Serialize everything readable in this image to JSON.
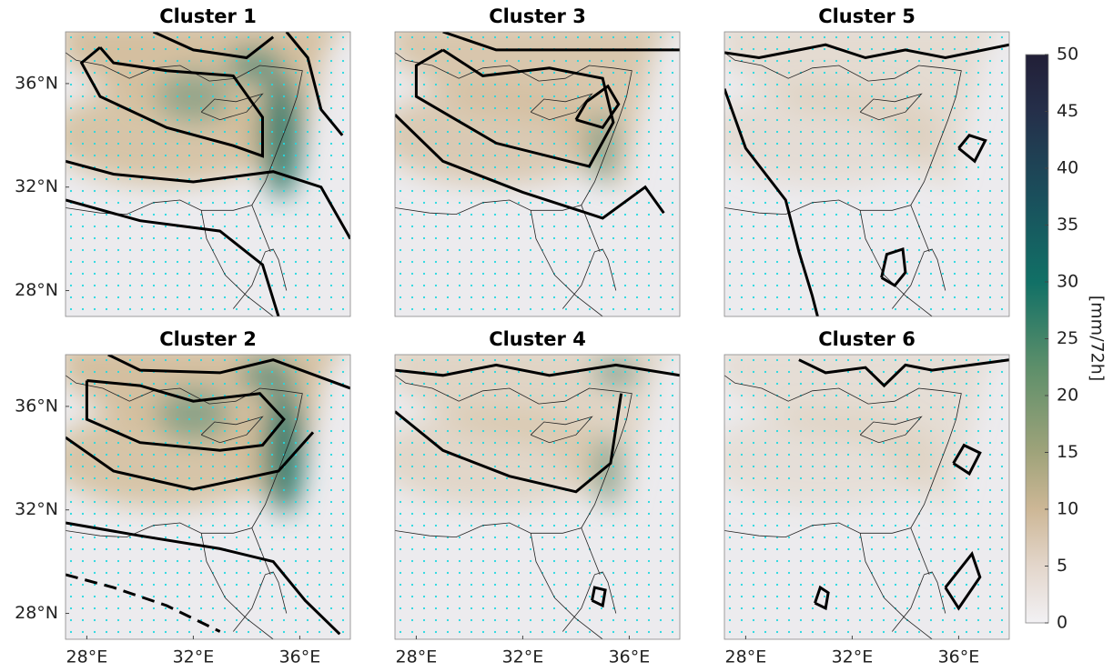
{
  "panels": [
    {
      "title": "Cluster 1"
    },
    {
      "title": "Cluster 3"
    },
    {
      "title": "Cluster 5"
    },
    {
      "title": "Cluster 2"
    },
    {
      "title": "Cluster 4"
    },
    {
      "title": "Cluster 6"
    }
  ],
  "lon_lim": [
    27.2,
    37.9
  ],
  "lat_lim": [
    27,
    38
  ],
  "lon_ticks": [
    {
      "value": 28,
      "label": "28°E"
    },
    {
      "value": 32,
      "label": "32°E"
    },
    {
      "value": 36,
      "label": "36°E"
    }
  ],
  "lat_ticks": [
    {
      "value": 36,
      "label": "36°N"
    },
    {
      "value": 32,
      "label": "32°N"
    },
    {
      "value": 28,
      "label": "28°N"
    }
  ],
  "colorbar": {
    "lim": [
      0,
      50
    ],
    "ticks": [
      0,
      5,
      10,
      15,
      20,
      25,
      30,
      35,
      40,
      45,
      50
    ],
    "label": "[mm/72h]"
  }
}
